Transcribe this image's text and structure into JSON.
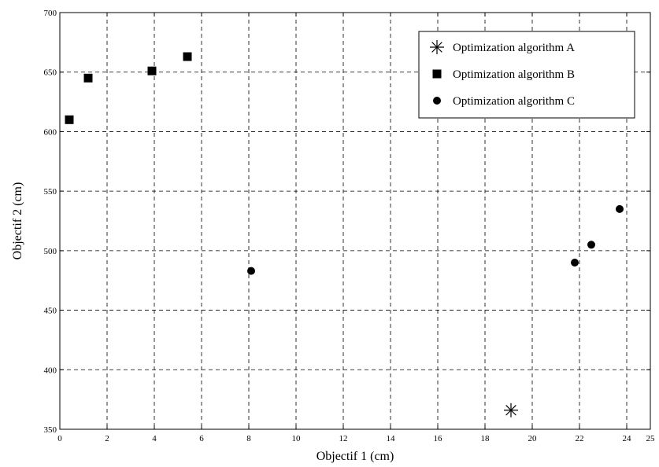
{
  "chart_data": {
    "type": "scatter",
    "title": "",
    "xlabel": "Objectif  1 (cm)",
    "ylabel": "Objectif  2 (cm)",
    "xlim": [
      0,
      25
    ],
    "ylim": [
      350,
      700
    ],
    "xticks": [
      "0",
      "2",
      "4",
      "6",
      "8",
      "10",
      "12",
      "14",
      "16",
      "18",
      "20",
      "22",
      "24",
      "25"
    ],
    "yticks": [
      "350",
      "400",
      "450",
      "500",
      "550",
      "600",
      "650",
      "700"
    ],
    "grid": true,
    "legend_position": "top-right",
    "series": [
      {
        "name": "Optimization algorithm A",
        "marker": "asterisk",
        "points": [
          [
            19.1,
            366
          ]
        ]
      },
      {
        "name": "Optimization algorithm B",
        "marker": "square",
        "points": [
          [
            0.4,
            610
          ],
          [
            1.2,
            645
          ],
          [
            3.9,
            651
          ],
          [
            5.4,
            663
          ]
        ]
      },
      {
        "name": "Optimization algorithm C",
        "marker": "circle",
        "points": [
          [
            8.1,
            483
          ],
          [
            21.8,
            490
          ],
          [
            22.5,
            505
          ],
          [
            23.7,
            535
          ]
        ]
      }
    ]
  }
}
